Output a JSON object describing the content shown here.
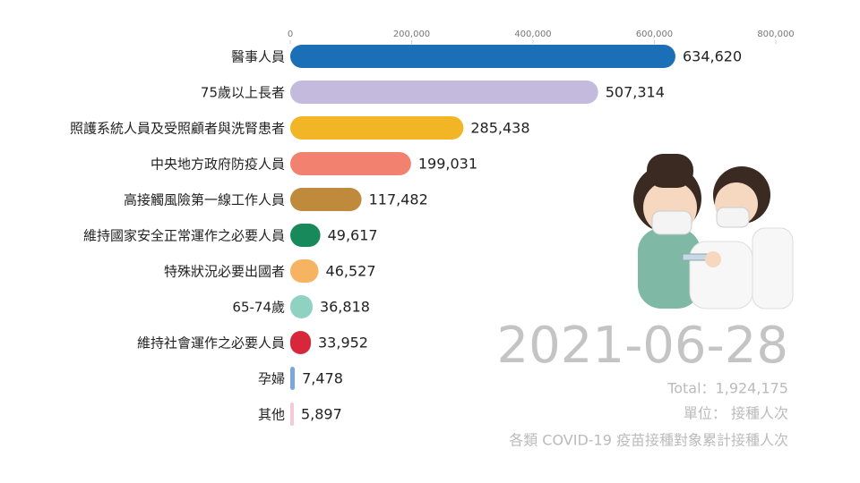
{
  "chart_data": {
    "type": "bar",
    "orientation": "horizontal",
    "categories": [
      "醫事人員",
      "75歲以上長者",
      "照護系統人員及受照顧者與洗腎患者",
      "中央地方政府防疫人員",
      "高接觸風險第一線工作人員",
      "維持國家安全正常運作之必要人員",
      "特殊狀況必要出國者",
      "65-74歲",
      "維持社會運作之必要人員",
      "孕婦",
      "其他"
    ],
    "values": [
      634620,
      507314,
      285438,
      199031,
      117482,
      49617,
      46527,
      36818,
      33952,
      7478,
      5897
    ],
    "value_labels": [
      "634,620",
      "507,314",
      "285,438",
      "199,031",
      "117,482",
      "49,617",
      "46,527",
      "36,818",
      "33,952",
      "7,478",
      "5,897"
    ],
    "colors": [
      "#1a6fb6",
      "#c4badd",
      "#f1b526",
      "#f2826f",
      "#c08a3c",
      "#17895a",
      "#f6b463",
      "#8fd2c1",
      "#d7273a",
      "#7ba8d8",
      "#f6c9da"
    ],
    "xlim": [
      0,
      800000
    ],
    "xticks": [
      0,
      {
        "value": 200000,
        "label": "200,000"
      },
      {
        "value": 400000,
        "label": "400,000"
      },
      {
        "value": 600000,
        "label": "600,000"
      },
      {
        "value": 800000,
        "label": "800,000"
      }
    ],
    "date": "2021-06-28",
    "total": "Total：1,924,175",
    "unit": "單位： 接種人次",
    "subtitle": "各類 COVID-19 疫苗接種對象累計接種人次"
  }
}
